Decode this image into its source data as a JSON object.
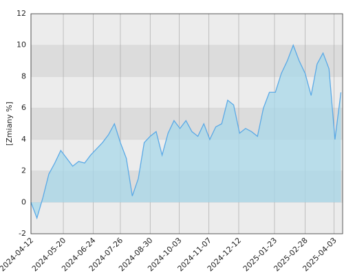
{
  "chart_data": {
    "type": "area",
    "y_label": "[Zmiany %]",
    "x": [
      "2024-04-12",
      "2024-04-19",
      "2024-04-26",
      "2024-05-03",
      "2024-05-10",
      "2024-05-17",
      "2024-05-24",
      "2024-05-31",
      "2024-06-07",
      "2024-06-14",
      "2024-06-21",
      "2024-06-28",
      "2024-07-05",
      "2024-07-12",
      "2024-07-19",
      "2024-07-26",
      "2024-08-02",
      "2024-08-09",
      "2024-08-16",
      "2024-08-23",
      "2024-08-30",
      "2024-09-06",
      "2024-09-13",
      "2024-09-20",
      "2024-09-27",
      "2024-10-04",
      "2024-10-11",
      "2024-10-18",
      "2024-10-25",
      "2024-11-01",
      "2024-11-08",
      "2024-11-15",
      "2024-11-22",
      "2024-11-29",
      "2024-12-06",
      "2024-12-13",
      "2024-12-20",
      "2024-12-27",
      "2025-01-03",
      "2025-01-10",
      "2025-01-17",
      "2025-01-24",
      "2025-01-31",
      "2025-02-07",
      "2025-02-14",
      "2025-02-21",
      "2025-02-28",
      "2025-03-07",
      "2025-03-14",
      "2025-03-21",
      "2025-03-28",
      "2025-04-04",
      "2025-04-11"
    ],
    "values": [
      0,
      -1.0,
      0.3,
      1.8,
      2.5,
      3.3,
      2.8,
      2.3,
      2.6,
      2.5,
      3.0,
      3.4,
      3.8,
      4.3,
      5.0,
      3.8,
      2.8,
      0.4,
      1.5,
      3.8,
      4.2,
      4.5,
      3.0,
      4.4,
      5.2,
      4.7,
      5.2,
      4.5,
      4.2,
      5.0,
      4.0,
      4.8,
      5.0,
      6.5,
      6.2,
      4.4,
      4.7,
      4.5,
      4.2,
      6.0,
      7.0,
      7.0,
      8.2,
      9.0,
      10.0,
      9.0,
      8.2,
      6.8,
      8.8,
      9.5,
      8.5,
      4.0,
      7.0
    ],
    "color": "#5aa9e6",
    "fill": "#a8d8ea",
    "xlim": [
      "2024-04-12",
      "2025-04-13"
    ],
    "xticks": [
      "2024-04-12",
      "2024-05-20",
      "2024-06-24",
      "2024-07-26",
      "2024-08-30",
      "2024-10-03",
      "2024-11-07",
      "2024-12-12",
      "2025-01-23",
      "2025-02-28",
      "2025-04-03"
    ],
    "ylim": [
      -2,
      12
    ],
    "yticks": [
      -2,
      0,
      2,
      4,
      6,
      8,
      10,
      12
    ],
    "grid": true
  }
}
